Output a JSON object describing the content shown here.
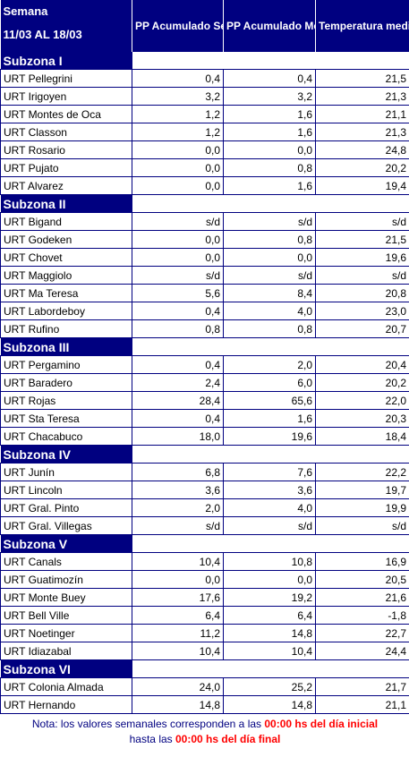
{
  "header": {
    "week_label": "Semana",
    "week_range": "11/03 AL 18/03",
    "col_pp_semanal": "PP Acumulado Semanal",
    "col_pp_mensual": "PP Acumulado Mensual Marzo",
    "col_temp": "Temperatura media Semanal"
  },
  "zones": [
    {
      "name": "Subzona I",
      "rows": [
        {
          "name": "URT Pellegrini",
          "pp_semanal": "0,4",
          "pp_mensual": "0,4",
          "temp": "21,5"
        },
        {
          "name": "URT Irigoyen",
          "pp_semanal": "3,2",
          "pp_mensual": "3,2",
          "temp": "21,3"
        },
        {
          "name": "URT Montes de Oca",
          "pp_semanal": "1,2",
          "pp_mensual": "1,6",
          "temp": "21,1"
        },
        {
          "name": "URT Classon",
          "pp_semanal": "1,2",
          "pp_mensual": "1,6",
          "temp": "21,3"
        },
        {
          "name": "URT Rosario",
          "pp_semanal": "0,0",
          "pp_mensual": "0,0",
          "temp": "24,8"
        },
        {
          "name": "URT Pujato",
          "pp_semanal": "0,0",
          "pp_mensual": "0,8",
          "temp": "20,2"
        },
        {
          "name": "URT Alvarez",
          "pp_semanal": "0,0",
          "pp_mensual": "1,6",
          "temp": "19,4"
        }
      ]
    },
    {
      "name": "Subzona II",
      "rows": [
        {
          "name": "URT Bigand",
          "pp_semanal": "s/d",
          "pp_mensual": "s/d",
          "temp": "s/d"
        },
        {
          "name": "URT Godeken",
          "pp_semanal": "0,0",
          "pp_mensual": "0,8",
          "temp": "21,5"
        },
        {
          "name": "URT Chovet",
          "pp_semanal": "0,0",
          "pp_mensual": "0,0",
          "temp": "19,6"
        },
        {
          "name": "URT Maggiolo",
          "pp_semanal": "s/d",
          "pp_mensual": "s/d",
          "temp": "s/d"
        },
        {
          "name": "URT Ma Teresa",
          "pp_semanal": "5,6",
          "pp_mensual": "8,4",
          "temp": "20,8"
        },
        {
          "name": "URT Labordeboy",
          "pp_semanal": "0,4",
          "pp_mensual": "4,0",
          "temp": "23,0"
        },
        {
          "name": "URT Rufino",
          "pp_semanal": "0,8",
          "pp_mensual": "0,8",
          "temp": "20,7"
        }
      ]
    },
    {
      "name": "Subzona III",
      "rows": [
        {
          "name": "URT Pergamino",
          "pp_semanal": "0,4",
          "pp_mensual": "2,0",
          "temp": "20,4"
        },
        {
          "name": "URT Baradero",
          "pp_semanal": "2,4",
          "pp_mensual": "6,0",
          "temp": "20,2"
        },
        {
          "name": "URT Rojas",
          "pp_semanal": "28,4",
          "pp_mensual": "65,6",
          "temp": "22,0"
        },
        {
          "name": "URT Sta Teresa",
          "pp_semanal": "0,4",
          "pp_mensual": "1,6",
          "temp": "20,3"
        },
        {
          "name": "URT Chacabuco",
          "pp_semanal": "18,0",
          "pp_mensual": "19,6",
          "temp": "18,4"
        }
      ]
    },
    {
      "name": "Subzona IV",
      "rows": [
        {
          "name": "URT Junín",
          "pp_semanal": "6,8",
          "pp_mensual": "7,6",
          "temp": "22,2"
        },
        {
          "name": "URT Lincoln",
          "pp_semanal": "3,6",
          "pp_mensual": "3,6",
          "temp": "19,7"
        },
        {
          "name": "URT Gral. Pinto",
          "pp_semanal": "2,0",
          "pp_mensual": "4,0",
          "temp": "19,9"
        },
        {
          "name": "URT Gral. Villegas",
          "pp_semanal": "s/d",
          "pp_mensual": "s/d",
          "temp": "s/d"
        }
      ]
    },
    {
      "name": "Subzona V",
      "rows": [
        {
          "name": "URT Canals",
          "pp_semanal": "10,4",
          "pp_mensual": "10,8",
          "temp": "16,9"
        },
        {
          "name": "URT Guatimozín",
          "pp_semanal": "0,0",
          "pp_mensual": "0,0",
          "temp": "20,5"
        },
        {
          "name": "URT Monte Buey",
          "pp_semanal": "17,6",
          "pp_mensual": "19,2",
          "temp": "21,6"
        },
        {
          "name": "URT Bell Ville",
          "pp_semanal": "6,4",
          "pp_mensual": "6,4",
          "temp": "-1,8"
        },
        {
          "name": "URT Noetinger",
          "pp_semanal": "11,2",
          "pp_mensual": "14,8",
          "temp": "22,7"
        },
        {
          "name": "URT Idiazabal",
          "pp_semanal": "10,4",
          "pp_mensual": "10,4",
          "temp": "24,4"
        }
      ]
    },
    {
      "name": "Subzona VI",
      "rows": [
        {
          "name": "URT Colonia Almada",
          "pp_semanal": "24,0",
          "pp_mensual": "25,2",
          "temp": "21,7"
        },
        {
          "name": "URT Hernando",
          "pp_semanal": "14,8",
          "pp_mensual": "14,8",
          "temp": "21,1"
        }
      ]
    }
  ],
  "note": {
    "part1": "Nota: los valores semanales corresponden a las ",
    "time_start": "00:00 hs del día inicial",
    "part2": "hasta las ",
    "time_end": "00:00 hs del día final"
  },
  "colors": {
    "navy": "#000080",
    "red": "#ff0000"
  }
}
